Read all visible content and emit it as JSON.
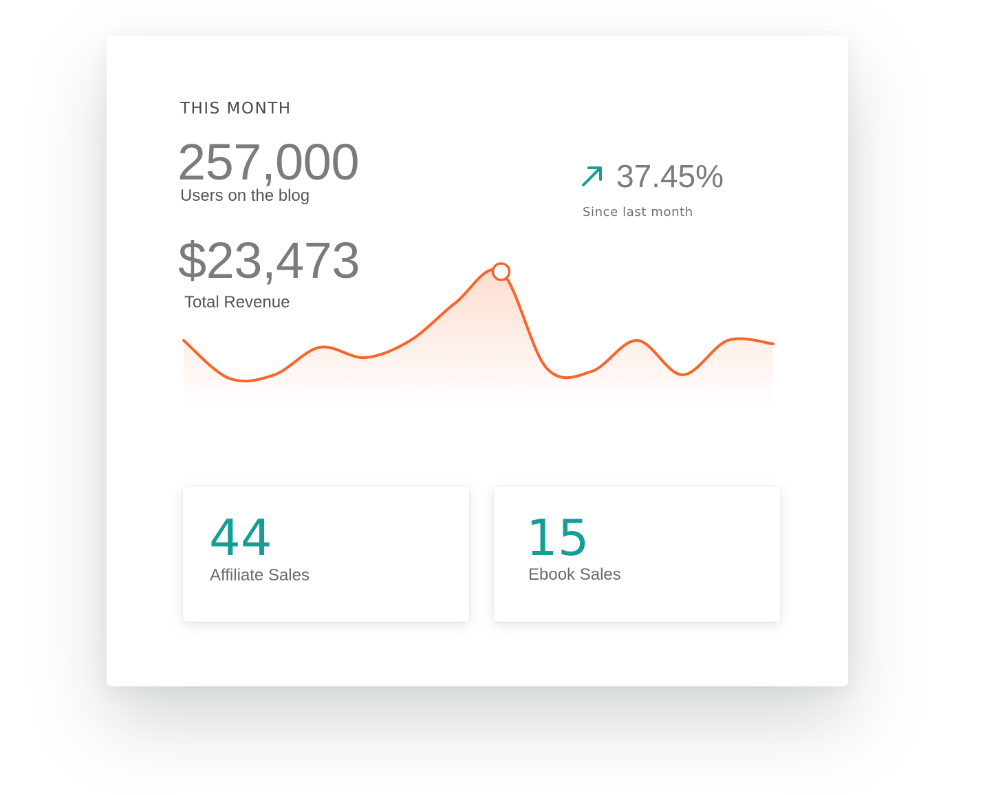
{
  "colors": {
    "accent": "#159e96",
    "line": "#fb6428",
    "value_text": "#7b7b7b"
  },
  "header": {
    "period_label": "THIS MONTH"
  },
  "users": {
    "value": "257,000",
    "caption": "Users on the blog"
  },
  "revenue": {
    "value": "$23,473",
    "caption": "Total Revenue"
  },
  "change": {
    "icon": "arrow-up-right-icon",
    "value": "37.45%",
    "caption": "Since last month"
  },
  "chart_data": {
    "type": "area",
    "title": "",
    "xlabel": "",
    "ylabel": "",
    "x": [
      0,
      1,
      2,
      3,
      4,
      5,
      6,
      7,
      8,
      9,
      10,
      11,
      12,
      13
    ],
    "values": [
      60,
      38,
      40,
      56,
      50,
      60,
      82,
      100,
      44,
      42,
      60,
      40,
      60,
      58
    ],
    "ylim": [
      0,
      120
    ],
    "grid": false,
    "highlight_index": 7
  },
  "stats": [
    {
      "value": "44",
      "caption": "Affiliate Sales"
    },
    {
      "value": "15",
      "caption": "Ebook Sales"
    }
  ]
}
